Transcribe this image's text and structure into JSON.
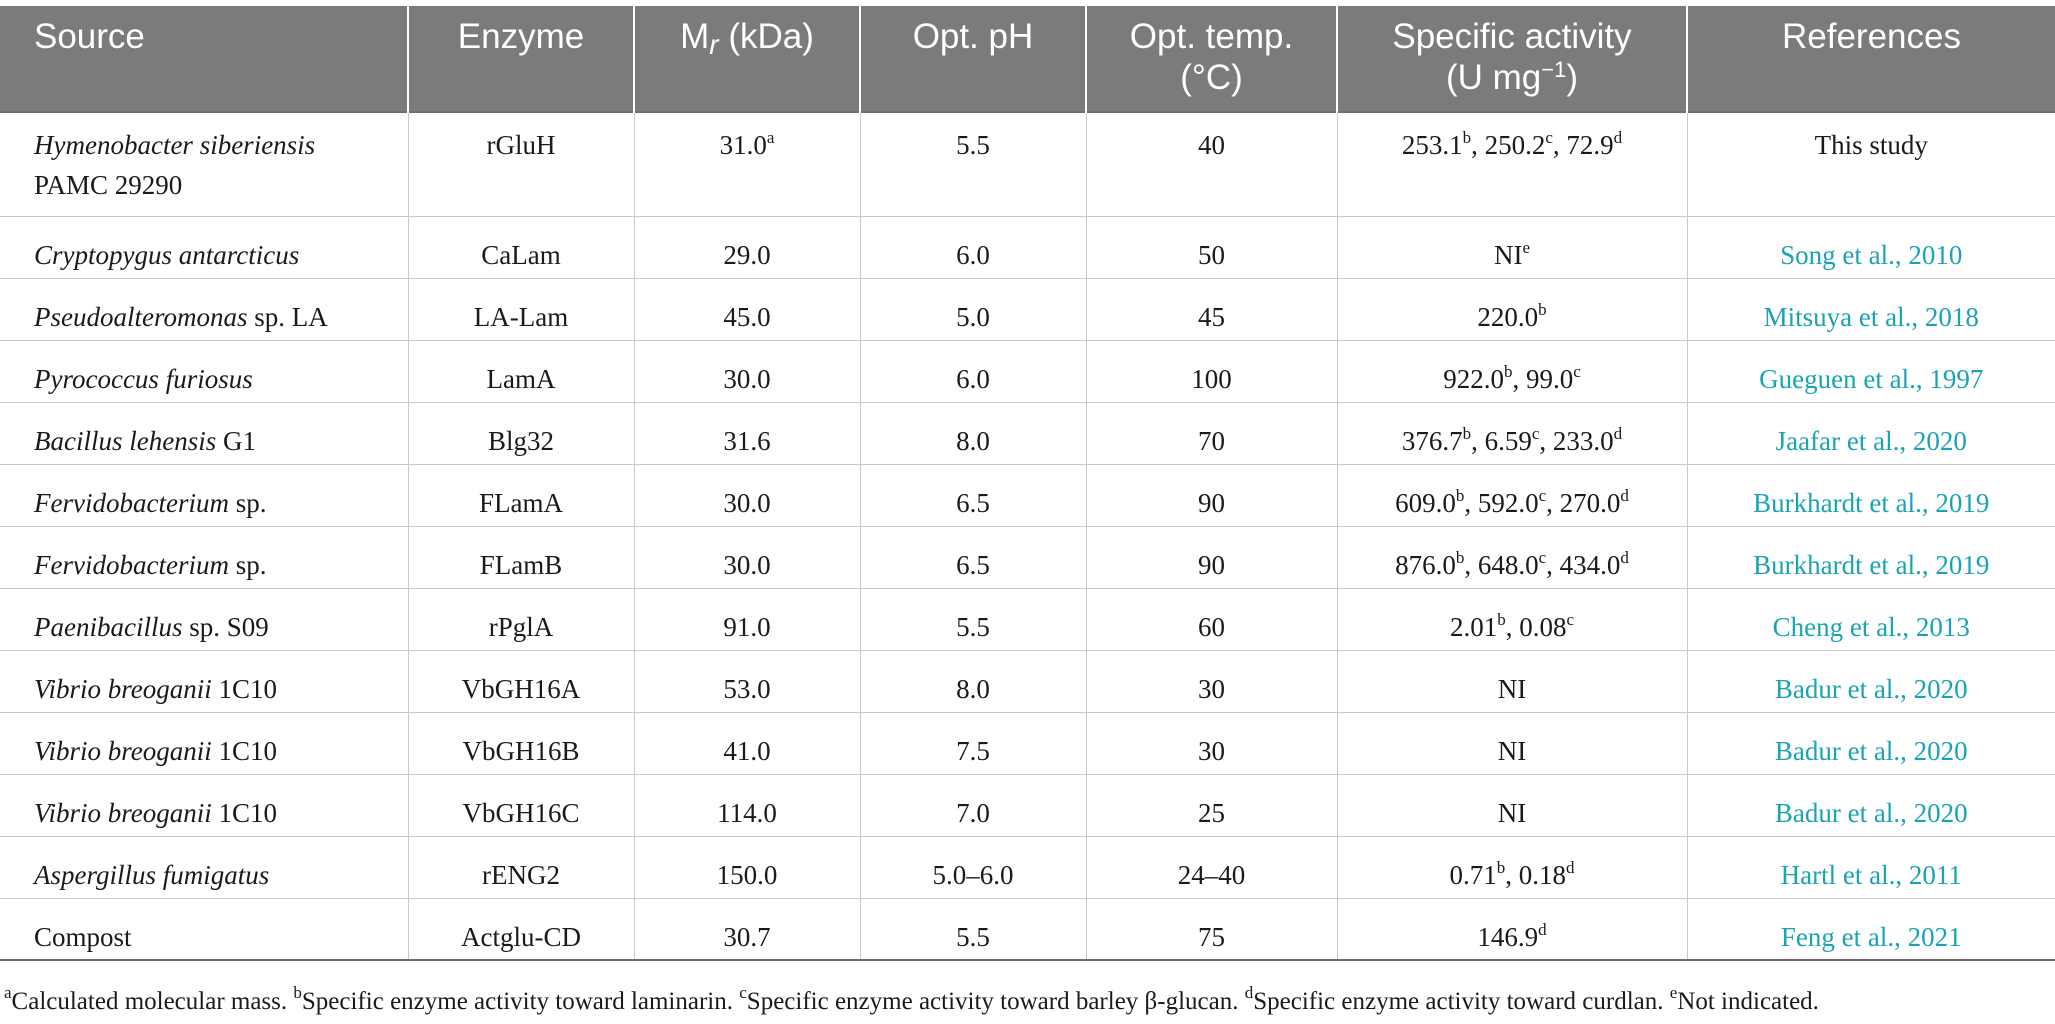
{
  "headers": {
    "source": "Source",
    "enzyme": "Enzyme",
    "mr_m": "M",
    "mr_r": "r",
    "mr_unit": " (kDa)",
    "ph": "Opt. pH",
    "temp_1": "Opt. temp.",
    "temp_2": "(°C)",
    "act_1": "Specific activity",
    "act_2a": "(U mg",
    "act_sup": "−1",
    "act_2b": ")",
    "refs": "References"
  },
  "rows": [
    {
      "sp": "Hymenobacter siberiensis",
      "sp_rest": "",
      "sp_line2": "PAMC 29290",
      "enzyme": "rGluH",
      "mr": "31.0",
      "mr_sup": "a",
      "ph": "5.5",
      "temp": "40",
      "act": [
        {
          "v": "253.1",
          "s": "b",
          "sep": ", "
        },
        {
          "v": "250.2",
          "s": "c",
          "sep": ", "
        },
        {
          "v": "72.9",
          "s": "d",
          "sep": ""
        }
      ],
      "ref": "This study"
    },
    {
      "sp": "Cryptopygus antarcticus",
      "sp_rest": "",
      "enzyme": "CaLam",
      "mr": "29.0",
      "ph": "6.0",
      "temp": "50",
      "act": [
        {
          "v": "NI",
          "s": "e",
          "sep": ""
        }
      ],
      "ref": "Song et al., 2010"
    },
    {
      "sp": "Pseudoalteromonas",
      "sp_rest": " sp. LA",
      "enzyme": "LA-Lam",
      "mr": "45.0",
      "ph": "5.0",
      "temp": "45",
      "act": [
        {
          "v": "220.0",
          "s": "b",
          "sep": ""
        }
      ],
      "ref": "Mitsuya et al., 2018"
    },
    {
      "sp": "Pyrococcus furiosus",
      "sp_rest": "",
      "enzyme": "LamA",
      "mr": "30.0",
      "ph": "6.0",
      "temp": "100",
      "act": [
        {
          "v": "922.0",
          "s": "b",
          "sep": ", "
        },
        {
          "v": "99.0",
          "s": "c",
          "sep": ""
        }
      ],
      "ref": "Gueguen et al., 1997"
    },
    {
      "sp": "Bacillus lehensis",
      "sp_rest": " G1",
      "enzyme": "Blg32",
      "mr": "31.6",
      "ph": "8.0",
      "temp": "70",
      "act": [
        {
          "v": "376.7",
          "s": "b",
          "sep": ", "
        },
        {
          "v": "6.59",
          "s": "c",
          "sep": ", "
        },
        {
          "v": "233.0",
          "s": "d",
          "sep": ""
        }
      ],
      "ref": "Jaafar et al., 2020"
    },
    {
      "sp": "Fervidobacterium",
      "sp_rest": " sp.",
      "enzyme": "FLamA",
      "mr": "30.0",
      "ph": "6.5",
      "temp": "90",
      "act": [
        {
          "v": "609.0",
          "s": "b",
          "sep": ", "
        },
        {
          "v": "592.0",
          "s": "c",
          "sep": ", "
        },
        {
          "v": "270.0",
          "s": "d",
          "sep": ""
        }
      ],
      "ref": "Burkhardt et al., 2019"
    },
    {
      "sp": "Fervidobacterium",
      "sp_rest": " sp.",
      "enzyme": "FLamB",
      "mr": "30.0",
      "ph": "6.5",
      "temp": "90",
      "act": [
        {
          "v": "876.0",
          "s": "b",
          "sep": ", "
        },
        {
          "v": "648.0",
          "s": "c",
          "sep": ", "
        },
        {
          "v": "434.0",
          "s": "d",
          "sep": ""
        }
      ],
      "ref": "Burkhardt et al., 2019"
    },
    {
      "sp": "Paenibacillus",
      "sp_rest": " sp. S09",
      "enzyme": "rPglA",
      "mr": "91.0",
      "ph": "5.5",
      "temp": "60",
      "act": [
        {
          "v": "2.01",
          "s": "b",
          "sep": ", "
        },
        {
          "v": "0.08",
          "s": "c",
          "sep": ""
        }
      ],
      "ref": "Cheng et al., 2013"
    },
    {
      "sp": "Vibrio breoganii",
      "sp_rest": " 1C10",
      "enzyme": "VbGH16A",
      "mr": "53.0",
      "ph": "8.0",
      "temp": "30",
      "act": [
        {
          "v": "NI",
          "s": "",
          "sep": ""
        }
      ],
      "ref": "Badur et al., 2020"
    },
    {
      "sp": "Vibrio breoganii",
      "sp_rest": " 1C10",
      "enzyme": "VbGH16B",
      "mr": "41.0",
      "ph": "7.5",
      "temp": "30",
      "act": [
        {
          "v": "NI",
          "s": "",
          "sep": ""
        }
      ],
      "ref": "Badur et al., 2020"
    },
    {
      "sp": "Vibrio breoganii",
      "sp_rest": " 1C10",
      "enzyme": "VbGH16C",
      "mr": "114.0",
      "ph": "7.0",
      "temp": "25",
      "act": [
        {
          "v": "NI",
          "s": "",
          "sep": ""
        }
      ],
      "ref": "Badur et al., 2020"
    },
    {
      "sp": "Aspergillus fumigatus",
      "sp_rest": "",
      "enzyme": "rENG2",
      "mr": "150.0",
      "ph": "5.0–6.0",
      "temp": "24–40",
      "act": [
        {
          "v": "0.71",
          "s": "b",
          "sep": ", "
        },
        {
          "v": "0.18",
          "s": "d",
          "sep": ""
        }
      ],
      "ref": "Hartl et al., 2011"
    },
    {
      "sp": "",
      "sp_rest": "Compost",
      "enzyme": "Actglu-CD",
      "mr": "30.7",
      "ph": "5.5",
      "temp": "75",
      "act": [
        {
          "v": "146.9",
          "s": "d",
          "sep": ""
        }
      ],
      "ref": "Feng et al., 2021"
    }
  ],
  "footnotes": [
    {
      "s": "a",
      "t": "Calculated molecular mass. "
    },
    {
      "s": "b",
      "t": "Specific enzyme activity toward laminarin. "
    },
    {
      "s": "c",
      "t": "Specific enzyme activity toward barley β-glucan. "
    },
    {
      "s": "d",
      "t": "Specific enzyme activity toward curdlan. "
    },
    {
      "s": "e",
      "t": "Not indicated."
    }
  ],
  "colors": {
    "header_bg": "#7b7b7b",
    "link": "#1aa3b3"
  }
}
